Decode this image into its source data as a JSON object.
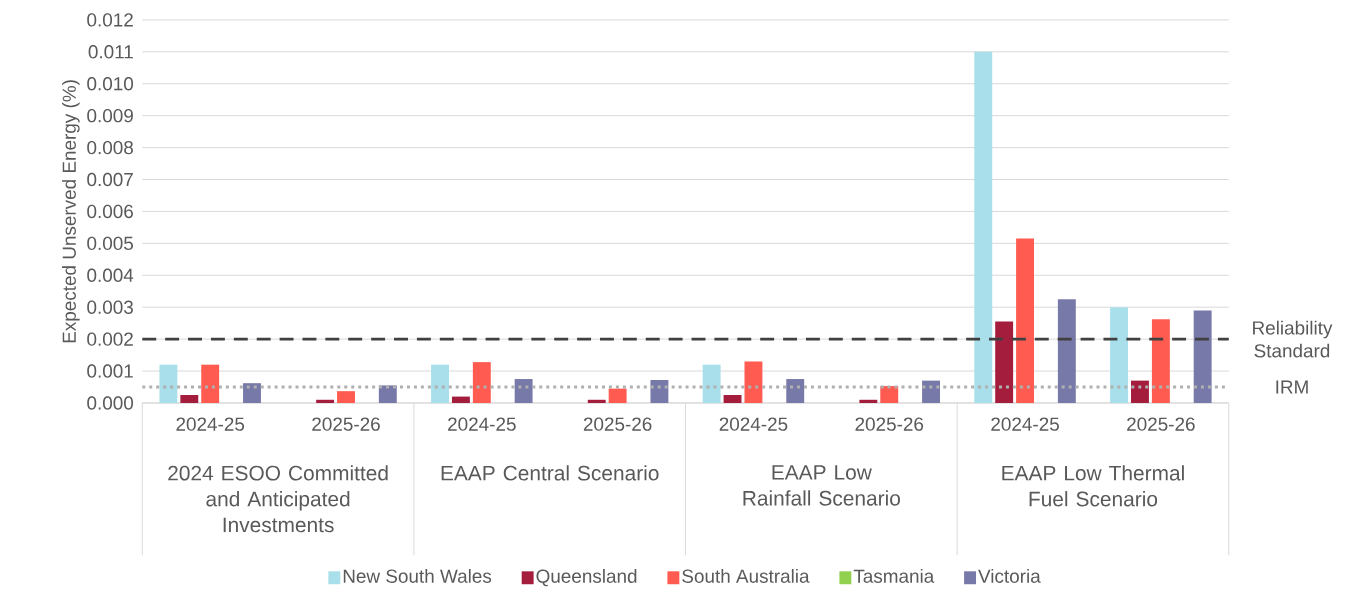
{
  "chart_data": {
    "type": "bar",
    "ylabel": "Expected Unserved Energy (%)",
    "categories": [
      "2024-25",
      "2025-26",
      "2024-25",
      "2025-26",
      "2024-25",
      "2025-26",
      "2024-25",
      "2025-26"
    ],
    "annotations": [
      "2024 ESOO Committed and Anticipated Investments",
      "EAAP Central Scenario",
      "EAAP Low Rainfall Scenario",
      "EAAP Low Thermal Fuel Scenario"
    ],
    "series": [
      {
        "name": "New South Wales",
        "color": "#a8dfea",
        "values": [
          0.0012,
          0,
          0.0012,
          0,
          0.0012,
          0,
          0.011,
          0.003
        ]
      },
      {
        "name": "Queensland",
        "color": "#a51d3d",
        "values": [
          0.00025,
          0.0001,
          0.0002,
          0.0001,
          0.00025,
          0.0001,
          0.00255,
          0.0007
        ]
      },
      {
        "name": "South Australia",
        "color": "#ff5b50",
        "values": [
          0.0012,
          0.00037,
          0.00128,
          0.00045,
          0.0013,
          0.00053,
          0.00515,
          0.00262
        ]
      },
      {
        "name": "Tasmania",
        "color": "#92d050",
        "values": [
          0,
          0,
          0,
          0,
          0,
          0,
          0,
          0
        ]
      },
      {
        "name": "Victoria",
        "color": "#7779a8",
        "values": [
          0.00062,
          0.00055,
          0.00075,
          0.00072,
          0.00075,
          0.0007,
          0.00325,
          0.0029
        ]
      }
    ],
    "ylim": [
      0,
      0.012
    ],
    "yticks": [
      {
        "value": 0,
        "label": "0.000"
      },
      {
        "value": 0.001,
        "label": "0.001"
      },
      {
        "value": 0.002,
        "label": "0.002"
      },
      {
        "value": 0.003,
        "label": "0.003"
      },
      {
        "value": 0.004,
        "label": "0.004"
      },
      {
        "value": 0.005,
        "label": "0.005"
      },
      {
        "value": 0.006,
        "label": "0.006"
      },
      {
        "value": 0.007,
        "label": "0.007"
      },
      {
        "value": 0.008,
        "label": "0.008"
      },
      {
        "value": 0.009,
        "label": "0.009"
      },
      {
        "value": 0.01,
        "label": "0.010"
      },
      {
        "value": 0.011,
        "label": "0.011"
      },
      {
        "value": 0.012,
        "label": "0.012"
      }
    ],
    "ref_lines": [
      {
        "axis": "y",
        "value": 0.002,
        "label": "Reliability Standard",
        "color": "#404040",
        "line_style": "dashed"
      },
      {
        "axis": "y",
        "value": 0.0005,
        "label": "IRM",
        "color": "#b0b0b0",
        "line_style": "dotted"
      }
    ],
    "grid": "y",
    "legend": "bottom"
  }
}
